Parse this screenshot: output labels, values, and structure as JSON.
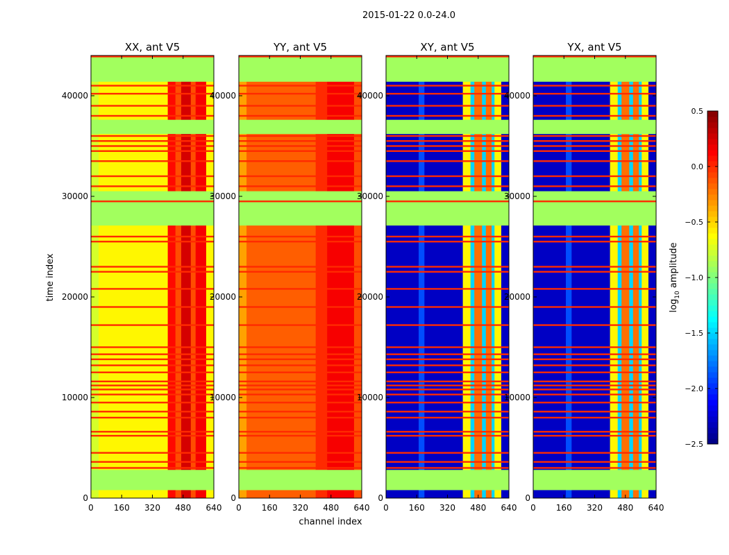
{
  "chart_data": {
    "type": "heatmap",
    "title": "2015-01-22 0.0-24.0",
    "xlabel": "channel index",
    "ylabel": "time index",
    "xlim": [
      0,
      640
    ],
    "ylim": [
      0,
      44000
    ],
    "xticks": [
      "0",
      "160",
      "320",
      "480",
      "640"
    ],
    "xtick_values": [
      0,
      160,
      320,
      480,
      640
    ],
    "yticks": [
      "0",
      "10000",
      "20000",
      "30000",
      "40000"
    ],
    "ytick_values": [
      0,
      10000,
      20000,
      30000,
      40000
    ],
    "colorbar": {
      "label_main": "log",
      "label_sub": "10",
      "label_rest": " amplitude",
      "range": [
        -2.5,
        0.5
      ],
      "ticks": [
        "0.5",
        "0.0",
        "−0.5",
        "−1.0",
        "−1.5",
        "−2.0",
        "−2.5"
      ],
      "tick_values": [
        0.5,
        0.0,
        -0.5,
        -1.0,
        -1.5,
        -2.0,
        -2.5
      ],
      "colormap": "jet"
    },
    "flag_value": -0.9,
    "data_time_ranges": [
      [
        0,
        800
      ],
      [
        2800,
        27100
      ],
      [
        30500,
        36200
      ],
      [
        37600,
        41400
      ]
    ],
    "flagged_time_ranges": [
      [
        800,
        2800
      ],
      [
        27100,
        29400
      ],
      [
        29700,
        30500
      ],
      [
        36200,
        37600
      ],
      [
        41400,
        43800
      ]
    ],
    "line_value": 0.0,
    "line_times": [
      3000,
      3600,
      4500,
      6200,
      6600,
      8000,
      8600,
      9500,
      10300,
      10800,
      11200,
      11600,
      12500,
      13200,
      13800,
      14300,
      15000,
      17200,
      19000,
      20800,
      22500,
      23000,
      25500,
      26000,
      29500,
      31000,
      32000,
      33500,
      34500,
      35000,
      35500,
      36000,
      38000,
      39000,
      40200,
      41000,
      43900
    ],
    "panels": [
      {
        "title": "XX, ant V5",
        "channel_bands": [
          [
            0,
            40,
            -0.75
          ],
          [
            40,
            400,
            -0.6
          ],
          [
            400,
            440,
            0.1
          ],
          [
            440,
            470,
            -0.1
          ],
          [
            470,
            520,
            0.25
          ],
          [
            520,
            545,
            -0.1
          ],
          [
            545,
            600,
            0.15
          ],
          [
            600,
            640,
            -0.6
          ]
        ]
      },
      {
        "title": "YY, ant V5",
        "channel_bands": [
          [
            0,
            40,
            -0.35
          ],
          [
            40,
            400,
            -0.15
          ],
          [
            400,
            460,
            0.0
          ],
          [
            460,
            600,
            0.15
          ],
          [
            600,
            640,
            -0.1
          ]
        ]
      },
      {
        "title": "XY, ant V5",
        "channel_bands": [
          [
            0,
            170,
            -2.3
          ],
          [
            170,
            200,
            -1.9
          ],
          [
            200,
            400,
            -2.3
          ],
          [
            400,
            440,
            -0.6
          ],
          [
            440,
            460,
            -1.5
          ],
          [
            460,
            500,
            -0.2
          ],
          [
            500,
            520,
            -1.5
          ],
          [
            520,
            550,
            -0.2
          ],
          [
            550,
            565,
            -1.5
          ],
          [
            565,
            600,
            -0.6
          ],
          [
            600,
            640,
            -2.3
          ]
        ]
      },
      {
        "title": "YX, ant V5",
        "channel_bands": [
          [
            0,
            170,
            -2.3
          ],
          [
            170,
            200,
            -1.9
          ],
          [
            200,
            400,
            -2.3
          ],
          [
            400,
            440,
            -0.6
          ],
          [
            440,
            460,
            -1.5
          ],
          [
            460,
            500,
            -0.2
          ],
          [
            500,
            520,
            -1.5
          ],
          [
            520,
            550,
            -0.2
          ],
          [
            550,
            565,
            -1.5
          ],
          [
            565,
            600,
            -0.6
          ],
          [
            600,
            640,
            -2.3
          ]
        ]
      }
    ]
  }
}
